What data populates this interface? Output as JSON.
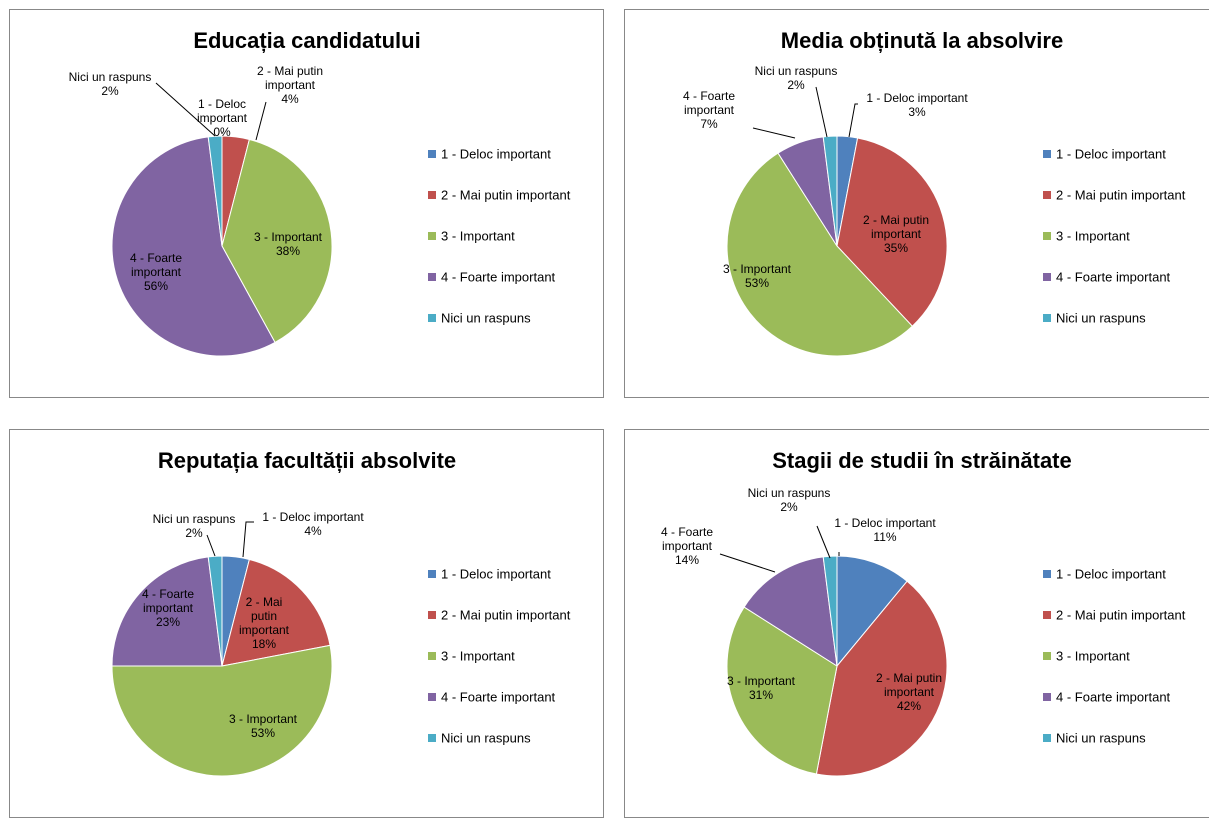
{
  "chart_data": [
    {
      "type": "pie",
      "title": "Educația candidatului",
      "categories": [
        "1 - Deloc important",
        "2 - Mai putin important",
        "3 - Important",
        "4 - Foarte important",
        "Nici un raspuns"
      ],
      "values": [
        0,
        4,
        38,
        56,
        2
      ],
      "slice_labels": [
        {
          "lines": [
            "1 - Deloc",
            "important",
            "0%"
          ]
        },
        {
          "lines": [
            "2 - Mai putin",
            "important",
            "4%"
          ]
        },
        {
          "lines": [
            "3 - Important",
            "38%"
          ]
        },
        {
          "lines": [
            "4 - Foarte",
            "important",
            "56%"
          ]
        },
        {
          "lines": [
            "Nici un raspuns",
            "2%"
          ]
        }
      ],
      "legend": "right"
    },
    {
      "type": "pie",
      "title": "Media obținută la absolvire",
      "categories": [
        "1 - Deloc important",
        "2 - Mai putin important",
        "3 - Important",
        "4 - Foarte important",
        "Nici un raspuns"
      ],
      "values": [
        3,
        35,
        53,
        7,
        2
      ],
      "slice_labels": [
        {
          "lines": [
            "1 - Deloc important",
            "3%"
          ]
        },
        {
          "lines": [
            "2 - Mai putin",
            "important",
            "35%"
          ]
        },
        {
          "lines": [
            "3 - Important",
            "53%"
          ]
        },
        {
          "lines": [
            "4 - Foarte",
            "important",
            "7%"
          ]
        },
        {
          "lines": [
            "Nici un raspuns",
            "2%"
          ]
        }
      ],
      "legend": "right"
    },
    {
      "type": "pie",
      "title": "Reputația facultății absolvite",
      "categories": [
        "1 - Deloc important",
        "2 - Mai putin important",
        "3 - Important",
        "4 - Foarte important",
        "Nici un raspuns"
      ],
      "values": [
        4,
        18,
        53,
        23,
        2
      ],
      "slice_labels": [
        {
          "lines": [
            "1 - Deloc important",
            "4%"
          ]
        },
        {
          "lines": [
            "2 - Mai",
            "putin",
            "important",
            "18%"
          ]
        },
        {
          "lines": [
            "3 - Important",
            "53%"
          ]
        },
        {
          "lines": [
            "4 - Foarte",
            "important",
            "23%"
          ]
        },
        {
          "lines": [
            "Nici un raspuns",
            "2%"
          ]
        }
      ],
      "legend": "right"
    },
    {
      "type": "pie",
      "title": "Stagii de studii în străinătate",
      "categories": [
        "1 - Deloc important",
        "2 - Mai putin important",
        "3 - Important",
        "4 - Foarte important",
        "Nici un raspuns"
      ],
      "values": [
        11,
        42,
        31,
        14,
        2
      ],
      "slice_labels": [
        {
          "lines": [
            "1 - Deloc important",
            "11%"
          ]
        },
        {
          "lines": [
            "2 - Mai putin",
            "important",
            "42%"
          ]
        },
        {
          "lines": [
            "3 - Important",
            "31%"
          ]
        },
        {
          "lines": [
            "4 - Foarte",
            "important",
            "14%"
          ]
        },
        {
          "lines": [
            "Nici un raspuns",
            "2%"
          ]
        }
      ],
      "legend": "right"
    }
  ],
  "colors": [
    "#4f81bd",
    "#c0504d",
    "#9bbb59",
    "#8064a2",
    "#4bacc6"
  ]
}
